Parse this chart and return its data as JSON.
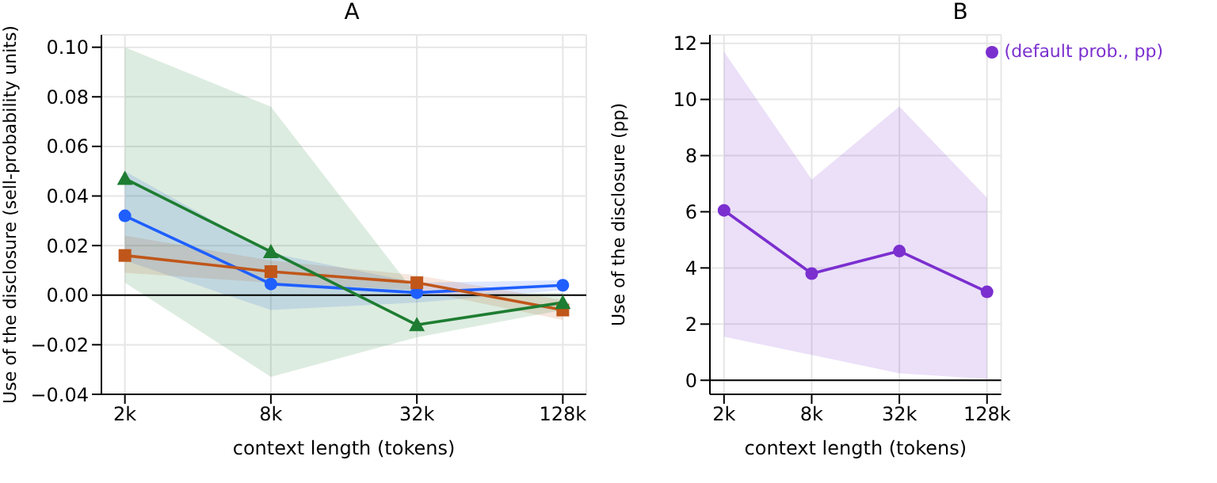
{
  "chart_data": [
    {
      "type": "line",
      "title": "A",
      "xlabel": "context length (tokens)",
      "ylabel": "Use of the disclosure (sell-probability units)",
      "x": [
        2000,
        8000,
        32000,
        128000
      ],
      "log": "x",
      "xlim": [
        1600,
        160000
      ],
      "xticks": [
        {
          "value": 2000,
          "label": "2k"
        },
        {
          "value": 8000,
          "label": "8k"
        },
        {
          "value": 32000,
          "label": "32k"
        },
        {
          "value": 128000,
          "label": "128k"
        }
      ],
      "ylim": [
        -0.04,
        0.105
      ],
      "yticks": [
        {
          "value": -0.04,
          "label": "−0.04"
        },
        {
          "value": -0.02,
          "label": "−0.02"
        },
        {
          "value": 0,
          "label": "0.00"
        },
        {
          "value": 0.02,
          "label": "0.02"
        },
        {
          "value": 0.04,
          "label": "0.04"
        },
        {
          "value": 0.06,
          "label": "0.06"
        },
        {
          "value": 0.08,
          "label": "0.08"
        },
        {
          "value": 0.1,
          "label": "0.10"
        }
      ],
      "grid": true,
      "legend": false,
      "ref_lines": [
        {
          "axis": "y",
          "value": 0,
          "color": "#000000"
        }
      ],
      "series": [
        {
          "color": "#1f5fff",
          "marker": "circle",
          "values": [
            0.032,
            0.0045,
            0.001,
            0.004
          ],
          "lower": [
            0.014,
            -0.006,
            -0.003,
            0.002
          ],
          "upper": [
            0.05,
            0.017,
            0.005,
            0.006
          ]
        },
        {
          "color": "#c0561a",
          "marker": "square",
          "values": [
            0.016,
            0.0095,
            0.005,
            -0.006
          ],
          "lower": [
            0.009,
            0.005,
            0.002,
            -0.01
          ],
          "upper": [
            0.024,
            0.014,
            0.008,
            -0.002
          ]
        },
        {
          "color": "#1e7d32",
          "marker": "triangle",
          "values": [
            0.047,
            0.0175,
            -0.012,
            -0.003
          ],
          "lower": [
            0.005,
            -0.033,
            -0.017,
            -0.006
          ],
          "upper": [
            0.1,
            0.076,
            0.0,
            0.001
          ]
        }
      ]
    },
    {
      "type": "line",
      "title": "B",
      "xlabel": "context length (tokens)",
      "ylabel": "Use of the disclosure (pp)",
      "x": [
        2000,
        8000,
        32000,
        128000
      ],
      "log": "x",
      "xlim": [
        1600,
        160000
      ],
      "xticks": [
        {
          "value": 2000,
          "label": "2k"
        },
        {
          "value": 8000,
          "label": "8k"
        },
        {
          "value": 32000,
          "label": "32k"
        },
        {
          "value": 128000,
          "label": "128k"
        }
      ],
      "ylim": [
        -0.5,
        12.3
      ],
      "yticks": [
        0,
        2,
        4,
        6,
        8,
        10,
        12
      ],
      "grid": true,
      "legend": "top right",
      "ref_lines": [
        {
          "axis": "y",
          "value": 0,
          "color": "#000000"
        }
      ],
      "series": [
        {
          "name": "(default prob., pp)",
          "color": "#7b2fcf",
          "marker": "circle",
          "values": [
            6.05,
            3.8,
            4.6,
            3.15
          ],
          "lower": [
            1.55,
            0.9,
            0.25,
            0.05
          ],
          "upper": [
            11.7,
            7.15,
            9.75,
            6.5
          ]
        }
      ]
    }
  ]
}
